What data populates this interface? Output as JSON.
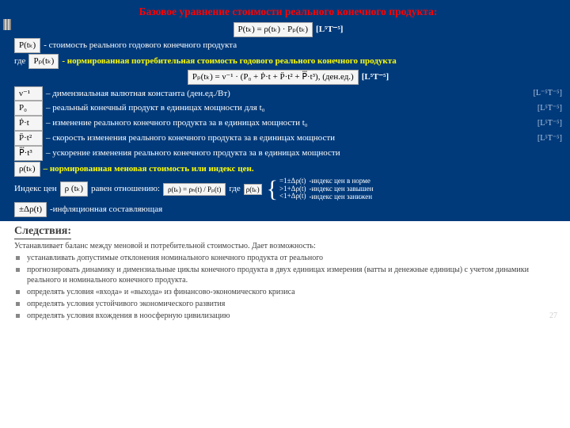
{
  "colors": {
    "slide_bg": "#003a7b",
    "accent_yellow": "#ffff00",
    "title_red": "#ff0101",
    "text_light": "#ffffff",
    "unit_dim": "#b8c9e0",
    "bottom_text": "#404040"
  },
  "title": "Базовое уравнение стоимости реального конечного продукта:",
  "main_eq": {
    "formula": "P(tₖ) = ρ(tₖ) · Pₚ(tₖ)",
    "unit": "[L⁵T⁻⁵]"
  },
  "line_cost": {
    "box": "P(tₖ)",
    "text": "- стоимость реального годового конечного продукта"
  },
  "line_where": {
    "pre": "где",
    "box": "Pₚ(tₖ)",
    "text": "- нормированная потребительная стоимость годового реального конечного продукта"
  },
  "pp_eq": {
    "formula": "Pₚ(tₖ) = ν⁻¹ · (P₀ + Ṗ·t + P̈·t² + P⃛·t³), (ден.ед.)",
    "unit": "[L⁵T⁻⁵]"
  },
  "defs": [
    {
      "box": "ν⁻¹",
      "text": "– димензиальная валютная константа (ден.ед./Вт)",
      "unit": "[L⁻⁵T⁻⁵]"
    },
    {
      "box": "P₀",
      "text": "– реальный конечный продукт в единицах мощности для t₀",
      "unit": "[L⁵T⁻⁵]"
    },
    {
      "box": "Ṗ·t",
      "text": "– изменение реального конечного продукта за  в единицах мощности t₀",
      "unit": "[L⁵T⁻⁵]"
    },
    {
      "box": "P̈·t²",
      "text": "– скорость изменения реального конечного продукта за  в единицах    мощности",
      "unit": "[L⁵T⁻⁵]"
    },
    {
      "box": "P⃛·t³",
      "text": "– ускорение изменения реального конечного продукта за  в единицах мощности",
      "unit": ""
    }
  ],
  "rho_def": {
    "box": "ρ(tₖ)",
    "text": "– нормированная меновая стоимость или индекс цен."
  },
  "index_line": {
    "pre": "Индекс цен",
    "box1": "ρ (tₖ)",
    "mid": "равен отношению:",
    "ratio": "ρ(tₖ) = ρₕ(t) / Pₚ(t)",
    "where": "где",
    "cases_values": [
      "=1±Δρ(t)",
      ">1+Δρ(t)",
      "<1+Δρ(t)"
    ],
    "cases_labels": [
      "-индекс цен в норме",
      "-индекс цен завышен",
      "-индекс цен занижен"
    ]
  },
  "infl": {
    "box": "±Δρ(t)",
    "text": "-инфляционная составляющая"
  },
  "bottom": {
    "heading": "Следствия:",
    "intro": "Устанавливает баланс между меновой и  потребительной стоимостью. Дает возможность:",
    "items": [
      "устанавливать допустимые отклонения номинального конечного продукта от реального",
      "прогнозировать динамику и димензиальные циклы конечного продукта в двух единицах измерения (ватты и денежные единицы) с учетом динамики реального и номинального конечного продукта.",
      "определять условия «входа» и «выхода» из финансово-экономического кризиса",
      "определять условия устойчивого экономического развития",
      "определять условия вхождения в ноосферную цивилизацию"
    ]
  },
  "page_number": "27"
}
